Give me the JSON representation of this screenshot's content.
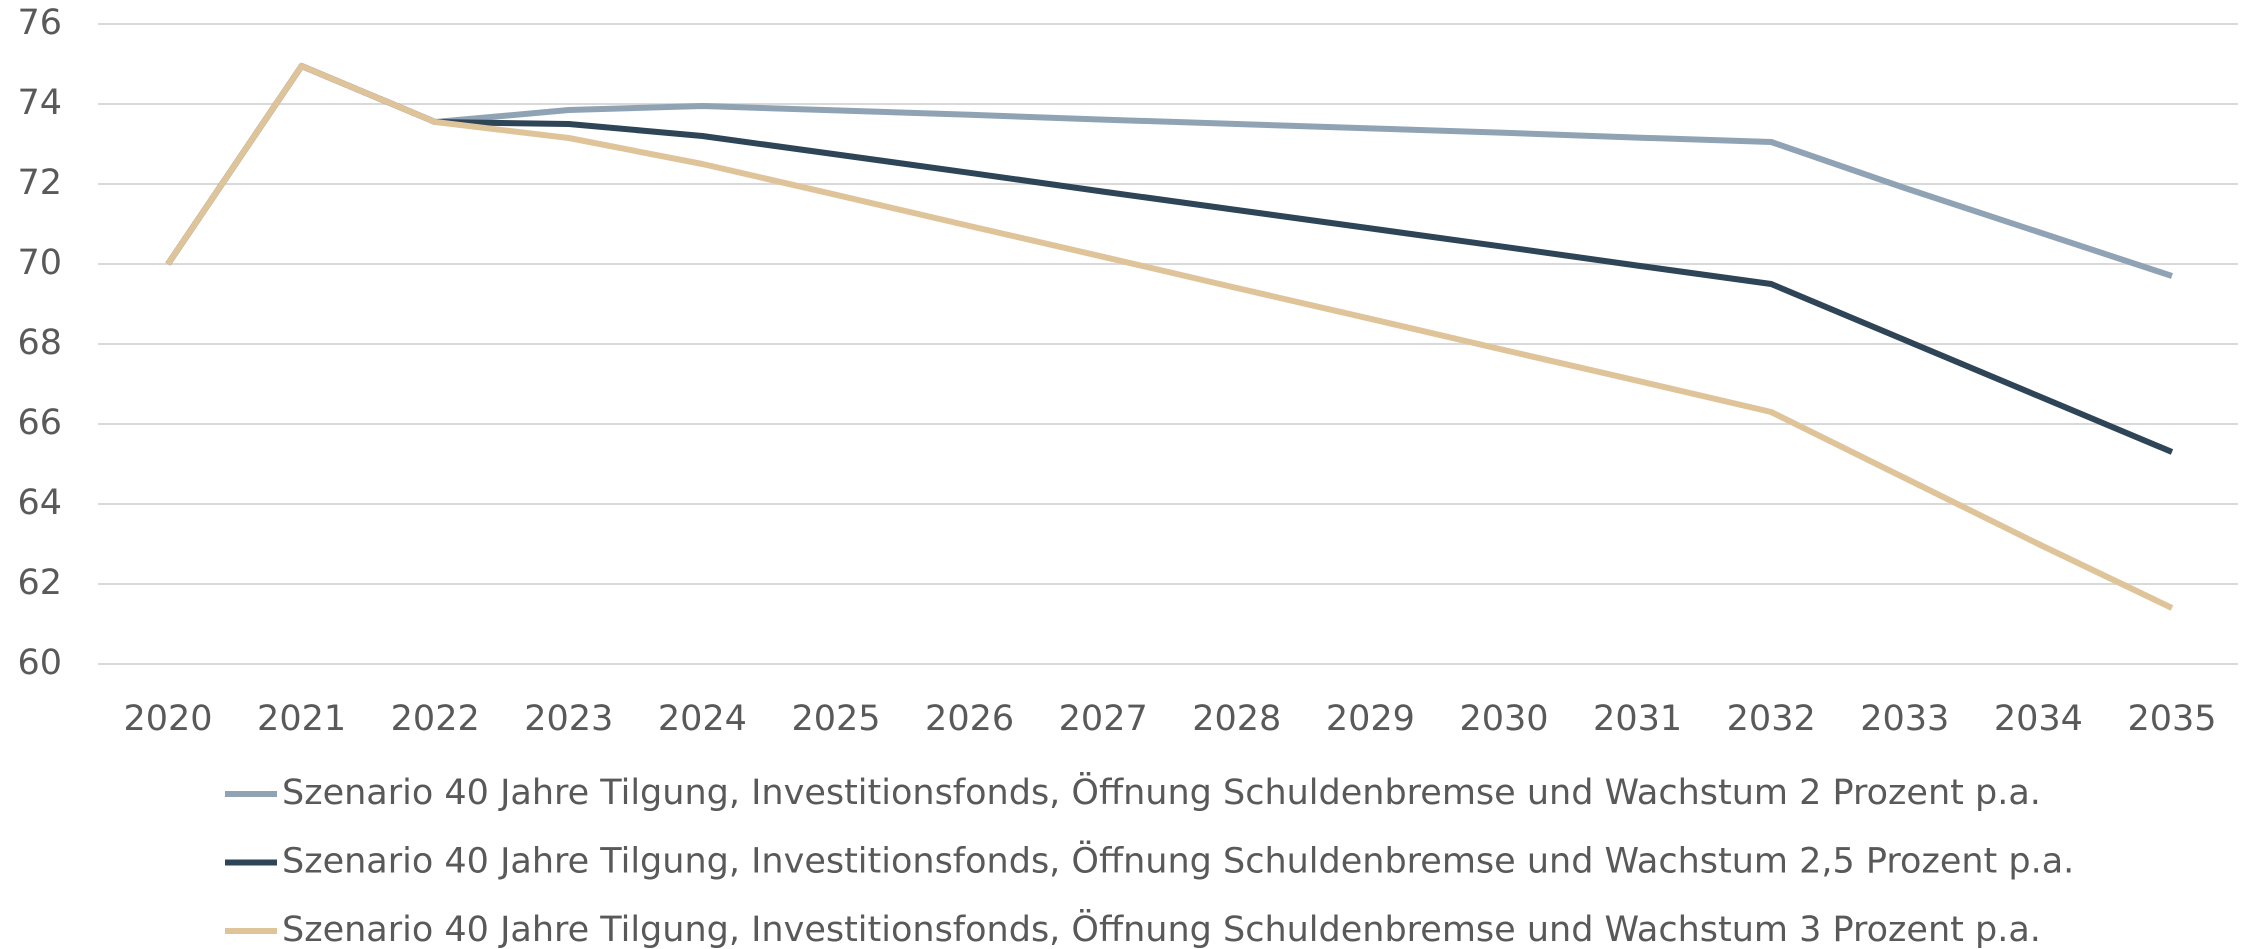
{
  "chart_data": {
    "type": "line",
    "categories": [
      "2020",
      "2021",
      "2022",
      "2023",
      "2024",
      "2025",
      "2026",
      "2027",
      "2028",
      "2029",
      "2030",
      "2031",
      "2032",
      "2033",
      "2034",
      "2035"
    ],
    "series": [
      {
        "name": "Szenario 40 Jahre Tilgung, Investitionsfonds, Öffnung Schuldenbremse und Wachstum 2 Prozent p.a.",
        "color": "#8fa3b5",
        "values": [
          70,
          74.95,
          73.55,
          73.85,
          73.95,
          73.84,
          73.73,
          73.61,
          73.5,
          73.39,
          73.28,
          73.16,
          73.05,
          71.9,
          70.8,
          69.7
        ]
      },
      {
        "name": "Szenario 40 Jahre Tilgung, Investitionsfonds, Öffnung Schuldenbremse und Wachstum 2,5 Prozent p.a.",
        "color": "#2e4457",
        "values": [
          70,
          74.95,
          73.55,
          73.5,
          73.2,
          72.74,
          72.28,
          71.81,
          71.35,
          70.89,
          70.43,
          69.96,
          69.5,
          68.1,
          66.7,
          65.3
        ]
      },
      {
        "name": "Szenario 40 Jahre Tilgung, Investitionsfonds, Öffnung Schuldenbremse und Wachstum 3 Prozent p.a.",
        "color": "#dfc49a",
        "values": [
          70,
          74.95,
          73.55,
          73.15,
          72.5,
          71.73,
          70.95,
          70.18,
          69.4,
          68.63,
          67.85,
          67.08,
          66.3,
          64.65,
          63.0,
          61.4
        ]
      }
    ],
    "ylim": [
      60,
      76
    ],
    "yticks": [
      60,
      62,
      64,
      66,
      68,
      70,
      72,
      74,
      76
    ],
    "grid": true,
    "legend": "bottom"
  }
}
